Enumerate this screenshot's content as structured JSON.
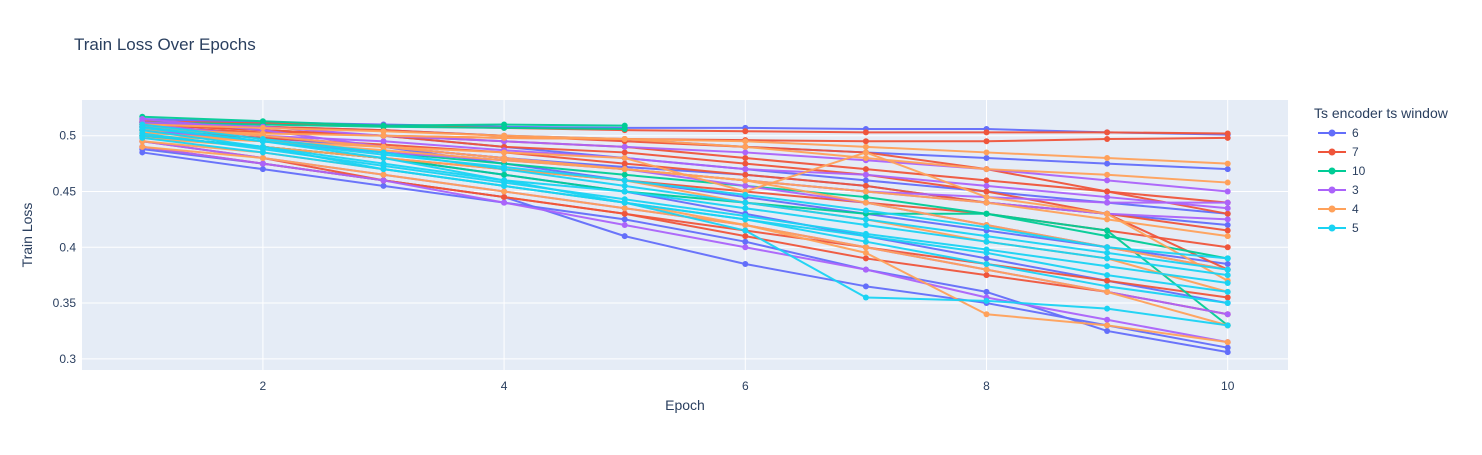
{
  "chart_data": {
    "type": "line",
    "title": "Train Loss Over Epochs",
    "xlabel": "Epoch",
    "ylabel": "Train Loss",
    "xlim": [
      0.5,
      10.5
    ],
    "ylim": [
      0.29,
      0.532
    ],
    "x_ticks": [
      2,
      4,
      6,
      8,
      10
    ],
    "x_tick_labels": [
      "2",
      "4",
      "6",
      "8",
      "10"
    ],
    "y_ticks": [
      0.3,
      0.35,
      0.4,
      0.45,
      0.5
    ],
    "y_tick_labels": [
      "0.3",
      "0.35",
      "0.4",
      "0.45",
      "0.5"
    ],
    "grid": true,
    "legend_title": "Ts encoder ts window",
    "legend_placement": "right",
    "x": [
      1,
      2,
      3,
      4,
      5,
      6,
      7,
      8,
      9,
      10
    ],
    "plot_background": "#E5ECF6",
    "series": [
      {
        "name": "6",
        "color": "#636EFA",
        "lines": [
          [
            0.515,
            0.512,
            0.51,
            0.508,
            0.507,
            0.507,
            0.506,
            0.506,
            0.503,
            0.501
          ],
          [
            0.485,
            0.47,
            0.455,
            0.44,
            0.425,
            0.405,
            0.38,
            0.36,
            0.325,
            0.306
          ],
          [
            0.488,
            0.475,
            0.46,
            0.445,
            0.41,
            0.385,
            0.365,
            0.35,
            0.33,
            0.31
          ],
          [
            0.51,
            0.505,
            0.5,
            0.49,
            0.48,
            0.47,
            0.46,
            0.45,
            0.44,
            0.43
          ],
          [
            0.508,
            0.5,
            0.49,
            0.475,
            0.46,
            0.445,
            0.43,
            0.415,
            0.4,
            0.385
          ],
          [
            0.505,
            0.498,
            0.49,
            0.48,
            0.472,
            0.465,
            0.455,
            0.44,
            0.43,
            0.42
          ],
          [
            0.5,
            0.49,
            0.48,
            0.465,
            0.45,
            0.43,
            0.41,
            0.39,
            0.37,
            0.35
          ],
          [
            0.512,
            0.508,
            0.505,
            0.5,
            0.497,
            0.49,
            0.485,
            0.48,
            0.475,
            0.47
          ]
        ]
      },
      {
        "name": "7",
        "color": "#EF553B",
        "lines": [
          [
            0.513,
            0.511,
            0.509,
            0.507,
            0.505,
            0.504,
            0.503,
            0.503,
            0.503,
            0.502
          ],
          [
            0.51,
            0.505,
            0.5,
            0.495,
            0.49,
            0.48,
            0.47,
            0.46,
            0.45,
            0.44
          ],
          [
            0.495,
            0.48,
            0.46,
            0.445,
            0.43,
            0.415,
            0.4,
            0.385,
            0.37,
            0.355
          ],
          [
            0.505,
            0.498,
            0.492,
            0.485,
            0.475,
            0.465,
            0.455,
            0.44,
            0.43,
            0.415
          ],
          [
            0.512,
            0.508,
            0.505,
            0.5,
            0.495,
            0.49,
            0.485,
            0.47,
            0.45,
            0.43
          ],
          [
            0.49,
            0.475,
            0.46,
            0.445,
            0.43,
            0.41,
            0.39,
            0.375,
            0.36,
            0.34
          ],
          [
            0.508,
            0.503,
            0.5,
            0.498,
            0.497,
            0.496,
            0.495,
            0.495,
            0.497,
            0.498
          ],
          [
            0.5,
            0.49,
            0.48,
            0.47,
            0.46,
            0.45,
            0.44,
            0.43,
            0.415,
            0.4
          ],
          [
            0.51,
            0.505,
            0.5,
            0.49,
            0.485,
            0.475,
            0.465,
            0.45,
            0.43,
            0.38
          ]
        ]
      },
      {
        "name": "10",
        "color": "#00CC96",
        "lines": [
          [
            0.517,
            0.513,
            0.509,
            0.51,
            0.509
          ],
          [
            0.512,
            0.51,
            0.508,
            0.507,
            0.506
          ],
          [
            0.505,
            0.495,
            0.485,
            0.475,
            0.465,
            0.455,
            0.445,
            0.43,
            0.41,
            0.39
          ],
          [
            0.5,
            0.49,
            0.48,
            0.465,
            0.45,
            0.44,
            0.43,
            0.43,
            0.415,
            0.33
          ]
        ]
      },
      {
        "name": "3",
        "color": "#AB63FA",
        "lines": [
          [
            0.515,
            0.505,
            0.49,
            0.48,
            0.47,
            0.46,
            0.45,
            0.445,
            0.44,
            0.44
          ],
          [
            0.51,
            0.5,
            0.49,
            0.48,
            0.47,
            0.46,
            0.45,
            0.44,
            0.43,
            0.425
          ],
          [
            0.505,
            0.495,
            0.485,
            0.478,
            0.47,
            0.455,
            0.44,
            0.42,
            0.4,
            0.38
          ],
          [
            0.495,
            0.48,
            0.465,
            0.45,
            0.435,
            0.42,
            0.4,
            0.38,
            0.36,
            0.34
          ],
          [
            0.49,
            0.475,
            0.46,
            0.44,
            0.42,
            0.4,
            0.38,
            0.355,
            0.335,
            0.315
          ],
          [
            0.512,
            0.508,
            0.5,
            0.495,
            0.49,
            0.485,
            0.478,
            0.47,
            0.46,
            0.45
          ],
          [
            0.508,
            0.5,
            0.495,
            0.487,
            0.48,
            0.47,
            0.465,
            0.455,
            0.445,
            0.435
          ]
        ]
      },
      {
        "name": "4",
        "color": "#FFA15A",
        "lines": [
          [
            0.505,
            0.502,
            0.5,
            0.498,
            0.497,
            0.495,
            0.49,
            0.485,
            0.48,
            0.475
          ],
          [
            0.51,
            0.507,
            0.504,
            0.5,
            0.497,
            0.49,
            0.48,
            0.47,
            0.465,
            0.458
          ],
          [
            0.49,
            0.48,
            0.465,
            0.45,
            0.435,
            0.42,
            0.4,
            0.38,
            0.36,
            0.33
          ],
          [
            0.495,
            0.485,
            0.47,
            0.455,
            0.44,
            0.42,
            0.395,
            0.34,
            0.33,
            0.315
          ],
          [
            0.5,
            0.495,
            0.49,
            0.485,
            0.48,
            0.45,
            0.485,
            0.445,
            0.43,
            0.37
          ],
          [
            0.508,
            0.5,
            0.49,
            0.48,
            0.47,
            0.46,
            0.44,
            0.42,
            0.4,
            0.38
          ],
          [
            0.503,
            0.495,
            0.487,
            0.478,
            0.47,
            0.46,
            0.45,
            0.44,
            0.425,
            0.41
          ],
          [
            0.498,
            0.49,
            0.48,
            0.47,
            0.46,
            0.44,
            0.425,
            0.405,
            0.39,
            0.36
          ]
        ]
      },
      {
        "name": "5",
        "color": "#19D3F3",
        "lines": [
          [
            0.508,
            0.495,
            0.48,
            0.46,
            0.44,
            0.415,
            0.355,
            0.352,
            0.345,
            0.33
          ],
          [
            0.505,
            0.49,
            0.47,
            0.455,
            0.44,
            0.425,
            0.41,
            0.395,
            0.375,
            0.36
          ],
          [
            0.5,
            0.49,
            0.475,
            0.46,
            0.45,
            0.435,
            0.42,
            0.405,
            0.39,
            0.375
          ],
          [
            0.51,
            0.497,
            0.485,
            0.47,
            0.455,
            0.44,
            0.425,
            0.41,
            0.395,
            0.38
          ],
          [
            0.502,
            0.488,
            0.473,
            0.458,
            0.443,
            0.428,
            0.412,
            0.398,
            0.383,
            0.368
          ],
          [
            0.507,
            0.495,
            0.483,
            0.472,
            0.46,
            0.447,
            0.433,
            0.418,
            0.4,
            0.39
          ],
          [
            0.498,
            0.485,
            0.47,
            0.455,
            0.44,
            0.425,
            0.405,
            0.385,
            0.365,
            0.35
          ]
        ]
      }
    ]
  }
}
